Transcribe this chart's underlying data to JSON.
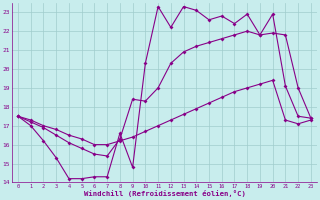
{
  "xlabel": "Windchill (Refroidissement éolien,°C)",
  "xlim": [
    -0.5,
    23.5
  ],
  "ylim": [
    14,
    23.5
  ],
  "yticks": [
    14,
    15,
    16,
    17,
    18,
    19,
    20,
    21,
    22,
    23
  ],
  "xticks": [
    0,
    1,
    2,
    3,
    4,
    5,
    6,
    7,
    8,
    9,
    10,
    11,
    12,
    13,
    14,
    15,
    16,
    17,
    18,
    19,
    20,
    21,
    22,
    23
  ],
  "bg_color": "#c8eded",
  "grid_color": "#a0cccc",
  "line_color": "#880088",
  "line1_x": [
    0,
    1,
    2,
    3,
    4,
    5,
    6,
    7,
    8,
    9,
    10,
    11,
    12,
    13,
    14,
    15,
    16,
    17,
    18,
    19,
    20,
    21,
    22,
    23
  ],
  "line1_y": [
    17.5,
    17.0,
    16.2,
    15.3,
    14.2,
    14.2,
    14.3,
    14.3,
    16.6,
    14.8,
    20.3,
    23.3,
    22.2,
    23.3,
    23.1,
    22.6,
    22.8,
    22.4,
    22.9,
    21.8,
    22.9,
    19.1,
    17.5,
    17.4
  ],
  "line2_x": [
    0,
    1,
    2,
    3,
    4,
    5,
    6,
    7,
    8,
    9,
    10,
    11,
    12,
    13,
    14,
    15,
    16,
    17,
    18,
    19,
    20,
    21,
    22,
    23
  ],
  "line2_y": [
    17.5,
    17.3,
    17.0,
    16.8,
    16.5,
    16.3,
    16.0,
    16.0,
    16.2,
    16.4,
    16.7,
    17.0,
    17.3,
    17.6,
    17.9,
    18.2,
    18.5,
    18.8,
    19.0,
    19.2,
    19.4,
    17.3,
    17.1,
    17.3
  ],
  "line3_x": [
    0,
    1,
    2,
    3,
    4,
    5,
    6,
    7,
    8,
    9,
    10,
    11,
    12,
    13,
    14,
    15,
    16,
    17,
    18,
    19,
    20,
    21,
    22,
    23
  ],
  "line3_y": [
    17.5,
    17.2,
    16.9,
    16.5,
    16.1,
    15.8,
    15.5,
    15.4,
    16.3,
    18.4,
    18.3,
    19.0,
    20.3,
    20.9,
    21.2,
    21.4,
    21.6,
    21.8,
    22.0,
    21.8,
    21.9,
    21.8,
    19.0,
    17.4
  ],
  "markersize": 2.0,
  "linewidth": 0.8
}
